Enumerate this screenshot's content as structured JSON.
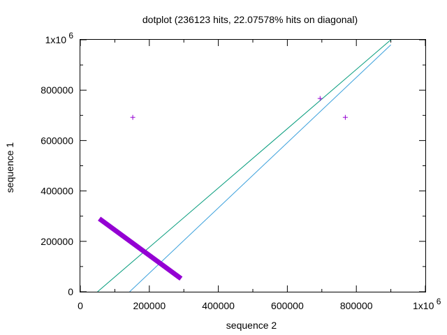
{
  "chart_data": {
    "type": "scatter",
    "title": "dotplot (236123 hits, 22.07578% hits on diagonal)",
    "xlabel": "sequence 2",
    "ylabel": "sequence 1",
    "xlim": [
      0,
      1000000
    ],
    "ylim": [
      0,
      1000000
    ],
    "x_ticks": [
      {
        "value": 0,
        "label": "0"
      },
      {
        "value": 200000,
        "label": "200000"
      },
      {
        "value": 400000,
        "label": "400000"
      },
      {
        "value": 600000,
        "label": "600000"
      },
      {
        "value": 800000,
        "label": "800000"
      },
      {
        "value": 1000000,
        "label": "1x10",
        "exponent": "6"
      }
    ],
    "y_ticks": [
      {
        "value": 0,
        "label": "0"
      },
      {
        "value": 200000,
        "label": "200000"
      },
      {
        "value": 400000,
        "label": "400000"
      },
      {
        "value": 600000,
        "label": "600000"
      },
      {
        "value": 800000,
        "label": "800000"
      },
      {
        "value": 1000000,
        "label": "1x10",
        "exponent": "6"
      }
    ],
    "grid": false,
    "legend": "none",
    "series": [
      {
        "kind": "line",
        "color": "#009a7a",
        "points": [
          [
            50000,
            0
          ],
          [
            900000,
            1000000
          ]
        ]
      },
      {
        "kind": "line",
        "color": "#3aa0dc",
        "points": [
          [
            143000,
            0
          ],
          [
            900000,
            980000
          ]
        ]
      },
      {
        "kind": "band",
        "color": "#9400d3",
        "points": [
          [
            55000,
            290000
          ],
          [
            292000,
            52000
          ]
        ]
      },
      {
        "kind": "points",
        "marker": "+",
        "color": "#9400d3",
        "points": [
          [
            152000,
            692000
          ],
          [
            695000,
            767000
          ],
          [
            768000,
            692000
          ]
        ]
      }
    ]
  }
}
